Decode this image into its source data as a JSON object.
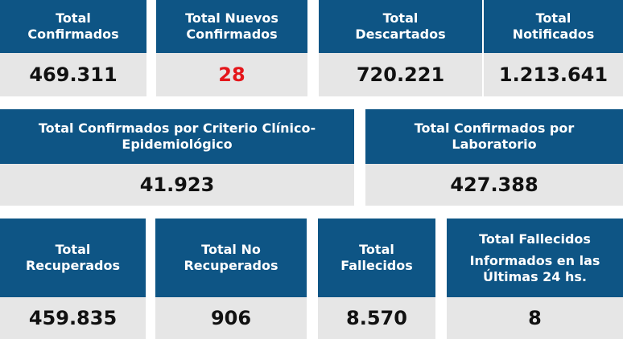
{
  "colors": {
    "header_bg": "#0e5585",
    "value_bg": "#e6e6e6",
    "highlight": "#e4161b"
  },
  "row1": [
    {
      "line1": "Total",
      "line2": "Confirmados",
      "value": "469.311"
    },
    {
      "line1": "Total Nuevos",
      "line2": "Confirmados",
      "value": "28"
    },
    {
      "line1": "Total",
      "line2": "Descartados",
      "value": "720.221"
    },
    {
      "line1": "Total",
      "line2": "Notificados",
      "value": "1.213.641"
    }
  ],
  "row2": [
    {
      "line1": "Total Confirmados por Criterio Clínico-",
      "line2": "Epidemiológico",
      "value": "41.923"
    },
    {
      "line1": "Total Confirmados por",
      "line2": "Laboratorio",
      "value": "427.388"
    }
  ],
  "row3": [
    {
      "line1": "Total",
      "line2": "Recuperados",
      "value": "459.835"
    },
    {
      "line1": "Total No",
      "line2": "Recuperados",
      "value": "906"
    },
    {
      "line1": "Total",
      "line2": "Fallecidos",
      "value": "8.570"
    },
    {
      "line1": "Total Fallecidos",
      "line2": "Informados en las",
      "line3": "Últimas 24 hs.",
      "value": "8"
    }
  ]
}
